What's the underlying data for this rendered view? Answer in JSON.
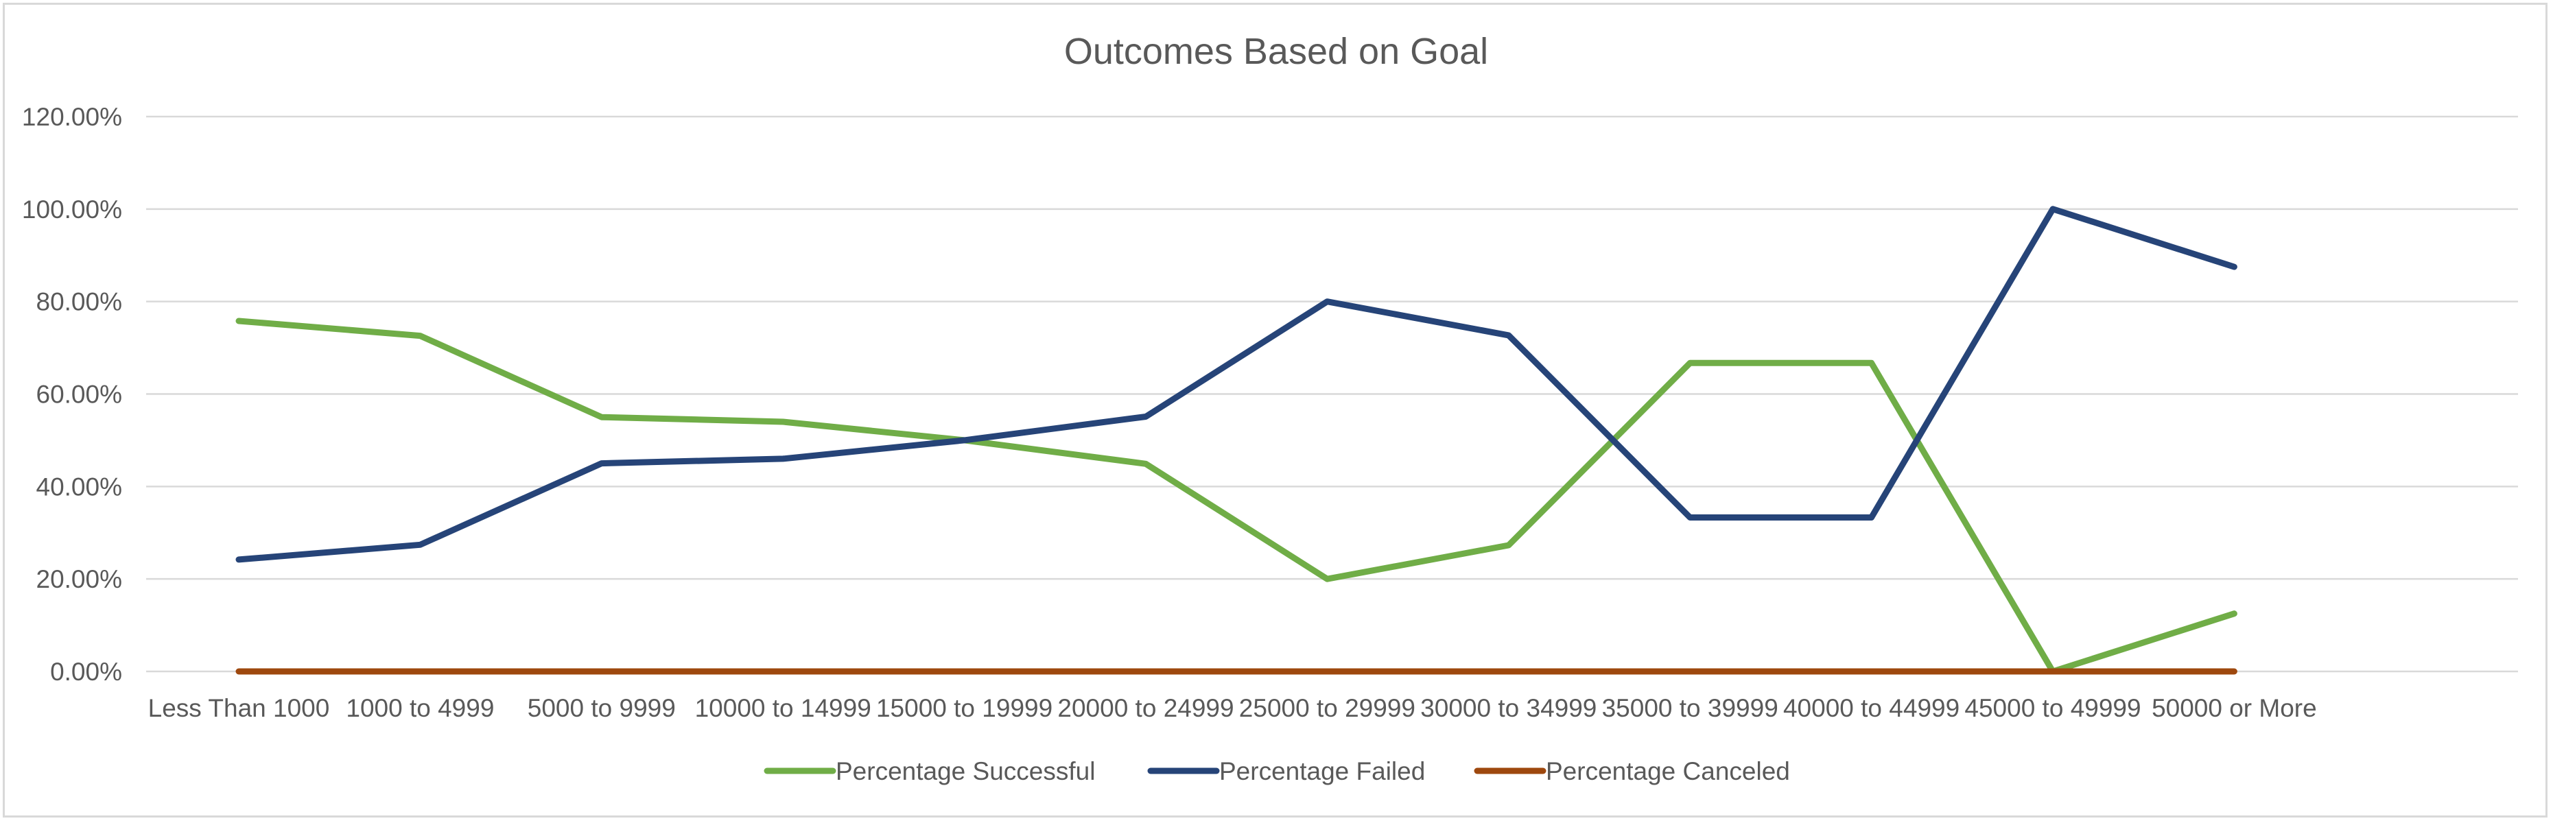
{
  "chart_data": {
    "type": "line",
    "title": "Outcomes Based on Goal",
    "xlabel": "",
    "ylabel": "",
    "ylim": [
      0,
      120
    ],
    "yticks": [
      "0.00%",
      "20.00%",
      "40.00%",
      "60.00%",
      "80.00%",
      "100.00%",
      "120.00%"
    ],
    "categories": [
      "Less Than 1000",
      "1000 to 4999",
      "5000 to 9999",
      "10000 to 14999",
      "15000 to 19999",
      "20000 to 24999",
      "25000 to 29999",
      "30000 to 34999",
      "35000 to 39999",
      "40000 to 44999",
      "45000 to 49999",
      "50000 or More"
    ],
    "series": [
      {
        "name": "Percentage Successful",
        "color": "#70ad47",
        "values": [
          75.8,
          72.6,
          55.0,
          54.0,
          50.0,
          44.9,
          20.0,
          27.3,
          66.7,
          66.7,
          0.0,
          12.5
        ]
      },
      {
        "name": "Percentage Failed",
        "color": "#264478",
        "values": [
          24.2,
          27.4,
          45.0,
          46.0,
          50.0,
          55.1,
          80.0,
          72.7,
          33.3,
          33.3,
          100.0,
          87.5
        ]
      },
      {
        "name": "Percentage Canceled",
        "color": "#9e480e",
        "values": [
          0,
          0,
          0,
          0,
          0,
          0,
          0,
          0,
          0,
          0,
          0,
          0
        ]
      }
    ],
    "grid": true,
    "legend_position": "bottom"
  }
}
